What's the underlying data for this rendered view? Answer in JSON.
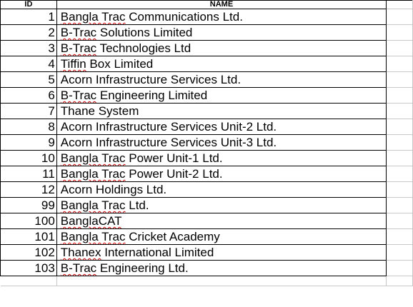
{
  "sheet": {
    "headers": {
      "id": "ID",
      "name": "NAME"
    },
    "rows": [
      {
        "id": "1",
        "name_parts": [
          {
            "t": "Bangla Trac",
            "s": true
          },
          {
            "t": " Communications Ltd.",
            "s": false
          }
        ]
      },
      {
        "id": "2",
        "name_parts": [
          {
            "t": "B-Trac",
            "s": true
          },
          {
            "t": " Solutions Limited",
            "s": false
          }
        ]
      },
      {
        "id": "3",
        "name_parts": [
          {
            "t": "B-Trac",
            "s": true
          },
          {
            "t": " Technologies Ltd",
            "s": false
          }
        ]
      },
      {
        "id": "4",
        "name_parts": [
          {
            "t": "Tiffin",
            "s": true
          },
          {
            "t": " Box Limited",
            "s": false
          }
        ]
      },
      {
        "id": "5",
        "name_parts": [
          {
            "t": "Acorn Infrastructure Services Ltd.",
            "s": false
          }
        ]
      },
      {
        "id": "6",
        "name_parts": [
          {
            "t": "B-Trac",
            "s": true
          },
          {
            "t": " Engineering Limited",
            "s": false
          }
        ]
      },
      {
        "id": "7",
        "name_parts": [
          {
            "t": "Thane System",
            "s": false
          }
        ]
      },
      {
        "id": "8",
        "name_parts": [
          {
            "t": "Acorn Infrastructure Services Unit-2 Ltd.",
            "s": false
          }
        ]
      },
      {
        "id": "9",
        "name_parts": [
          {
            "t": "Acorn Infrastructure Services Unit-3 Ltd.",
            "s": false
          }
        ]
      },
      {
        "id": "10",
        "name_parts": [
          {
            "t": "Bangla Trac",
            "s": true
          },
          {
            "t": " Power Unit-1 Ltd.",
            "s": false
          }
        ]
      },
      {
        "id": "11",
        "name_parts": [
          {
            "t": "Bangla Trac",
            "s": true
          },
          {
            "t": " Power Unit-2 Ltd.",
            "s": false
          }
        ]
      },
      {
        "id": "12",
        "name_parts": [
          {
            "t": "Acorn Holdings Ltd.",
            "s": false
          }
        ]
      },
      {
        "id": "99",
        "name_parts": [
          {
            "t": "Bangla Trac",
            "s": true
          },
          {
            "t": " Ltd.",
            "s": false
          }
        ]
      },
      {
        "id": "100",
        "name_parts": [
          {
            "t": "BanglaCAT",
            "s": true
          }
        ]
      },
      {
        "id": "101",
        "name_parts": [
          {
            "t": "Bangla Trac",
            "s": true
          },
          {
            "t": " Cricket Academy",
            "s": false
          }
        ]
      },
      {
        "id": "102",
        "name_parts": [
          {
            "t": "Thanex",
            "s": true
          },
          {
            "t": " International Limited",
            "s": false
          }
        ]
      },
      {
        "id": "103",
        "name_parts": [
          {
            "t": "B-Trac",
            "s": true
          },
          {
            "t": " Engineering Ltd.",
            "s": false
          }
        ]
      }
    ]
  },
  "colors": {
    "gridline": "#c8c8c8",
    "border": "#000000",
    "spellcheck": "#cc0000"
  }
}
